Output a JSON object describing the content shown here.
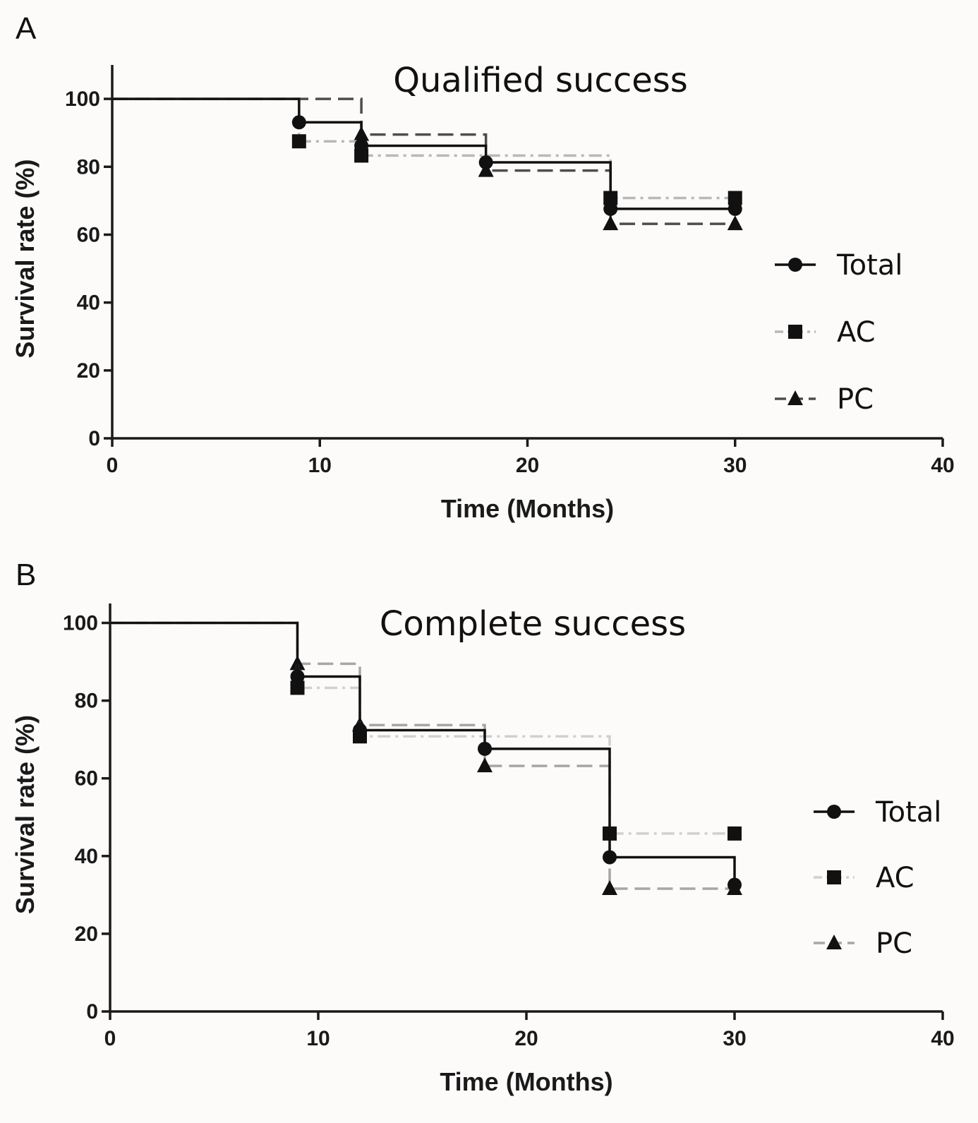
{
  "chart_data": [
    {
      "panel": "A",
      "type": "line",
      "step": true,
      "title": "Qualified success",
      "xlabel": "Time (Months)",
      "ylabel": "Survival rate (%)",
      "xlim": [
        0,
        40
      ],
      "ylim": [
        0,
        110
      ],
      "xticks": [
        0,
        10,
        20,
        30,
        40
      ],
      "yticks": [
        0,
        20,
        40,
        60,
        80,
        100
      ],
      "legend_position": "right",
      "series": [
        {
          "name": "Total",
          "style": "solid",
          "color": "#111111",
          "marker": "circle",
          "x": [
            0,
            9,
            12,
            18,
            24,
            30
          ],
          "y": [
            100,
            93.1,
            86.2,
            81.3,
            67.6,
            67.6
          ],
          "markers": [
            9,
            12,
            18,
            24,
            30
          ]
        },
        {
          "name": "AC",
          "style": "dashdot",
          "color": "#b8b8b8",
          "marker": "square",
          "x": [
            0,
            9,
            12,
            18,
            24,
            30
          ],
          "y": [
            100,
            87.5,
            83.3,
            83.3,
            70.8,
            70.8
          ],
          "markers": [
            9,
            12,
            24,
            30
          ]
        },
        {
          "name": "PC",
          "style": "dashed",
          "color": "#4d4d4d",
          "marker": "triangle",
          "x": [
            0,
            12,
            18,
            24,
            30
          ],
          "y": [
            100,
            89.5,
            78.9,
            63.2,
            63.2
          ],
          "markers": [
            12,
            18,
            24,
            30
          ]
        }
      ]
    },
    {
      "panel": "B",
      "type": "line",
      "step": true,
      "title": "Complete success",
      "xlabel": "Time (Months)",
      "ylabel": "Survival rate (%)",
      "xlim": [
        0,
        40
      ],
      "ylim": [
        0,
        105
      ],
      "xticks": [
        0,
        10,
        20,
        30,
        40
      ],
      "yticks": [
        0,
        20,
        40,
        60,
        80,
        100
      ],
      "legend_position": "right",
      "series": [
        {
          "name": "Total",
          "style": "solid",
          "color": "#111111",
          "marker": "circle",
          "x": [
            0,
            9,
            12,
            18,
            24,
            30
          ],
          "y": [
            100,
            86.2,
            72.4,
            67.6,
            39.7,
            32.6
          ],
          "markers": [
            9,
            12,
            18,
            24,
            30
          ]
        },
        {
          "name": "AC",
          "style": "dashdot",
          "color": "#d0d0d0",
          "marker": "square",
          "x": [
            0,
            9,
            12,
            18,
            24,
            30
          ],
          "y": [
            100,
            83.3,
            70.8,
            70.8,
            45.8,
            45.8
          ],
          "markers": [
            9,
            12,
            24,
            30
          ]
        },
        {
          "name": "PC",
          "style": "dashed",
          "color": "#a6a6a6",
          "marker": "triangle",
          "x": [
            0,
            9,
            12,
            18,
            24,
            30
          ],
          "y": [
            100,
            89.5,
            73.7,
            63.2,
            31.6,
            31.6
          ],
          "markers": [
            9,
            12,
            18,
            24,
            30
          ]
        }
      ]
    }
  ]
}
